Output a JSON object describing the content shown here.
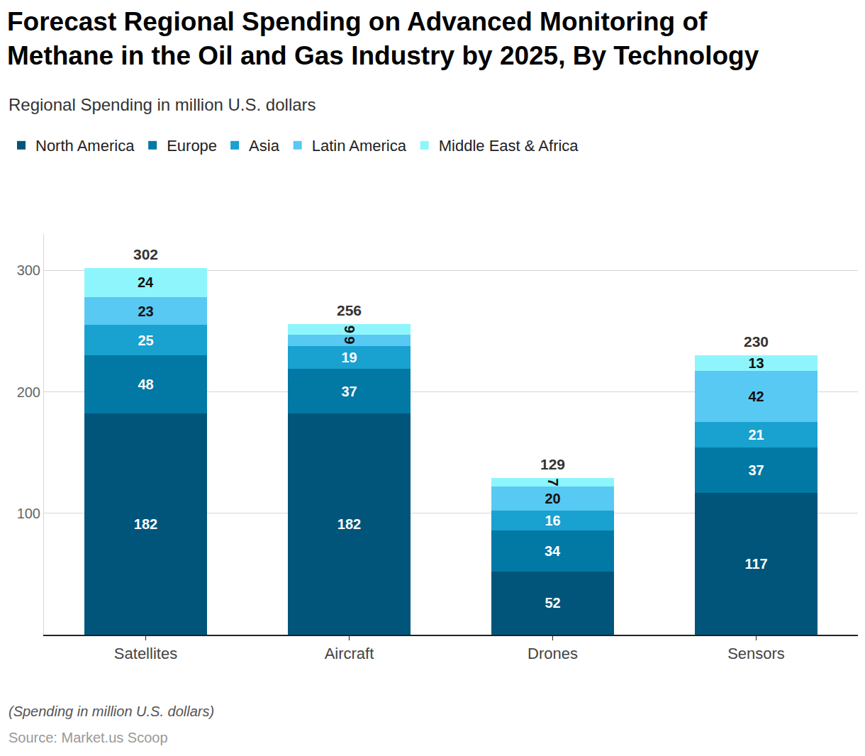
{
  "chart_data": {
    "type": "bar",
    "title": "Forecast Regional Spending on Advanced Monitoring of Methane in the Oil and Gas Industry by 2025, By Technology",
    "subtitle": "Regional Spending in million U.S. dollars",
    "annotations": [
      "(Spending in million U.S. dollars)",
      "Source: Market.us Scoop"
    ],
    "categories": [
      "Satellites",
      "Aircraft",
      "Drones",
      "Sensors"
    ],
    "series": [
      {
        "name": "North America",
        "color": "#02557a",
        "values": [
          182,
          182,
          52,
          117
        ]
      },
      {
        "name": "Europe",
        "color": "#0278a5",
        "values": [
          48,
          37,
          34,
          37
        ]
      },
      {
        "name": "Asia",
        "color": "#19a1cf",
        "values": [
          25,
          19,
          16,
          21
        ]
      },
      {
        "name": "Latin America",
        "color": "#58c9f3",
        "values": [
          23,
          9,
          20,
          42
        ]
      },
      {
        "name": "Middle East & Africa",
        "color": "#8ef5fd",
        "values": [
          24,
          9,
          7,
          13
        ]
      }
    ],
    "totals": [
      302,
      256,
      129,
      230
    ],
    "ylim": [
      0,
      330
    ],
    "yticks": [
      100,
      200,
      300
    ],
    "grid": true,
    "stacked": true,
    "data_labels": true,
    "legend": "top-left"
  }
}
